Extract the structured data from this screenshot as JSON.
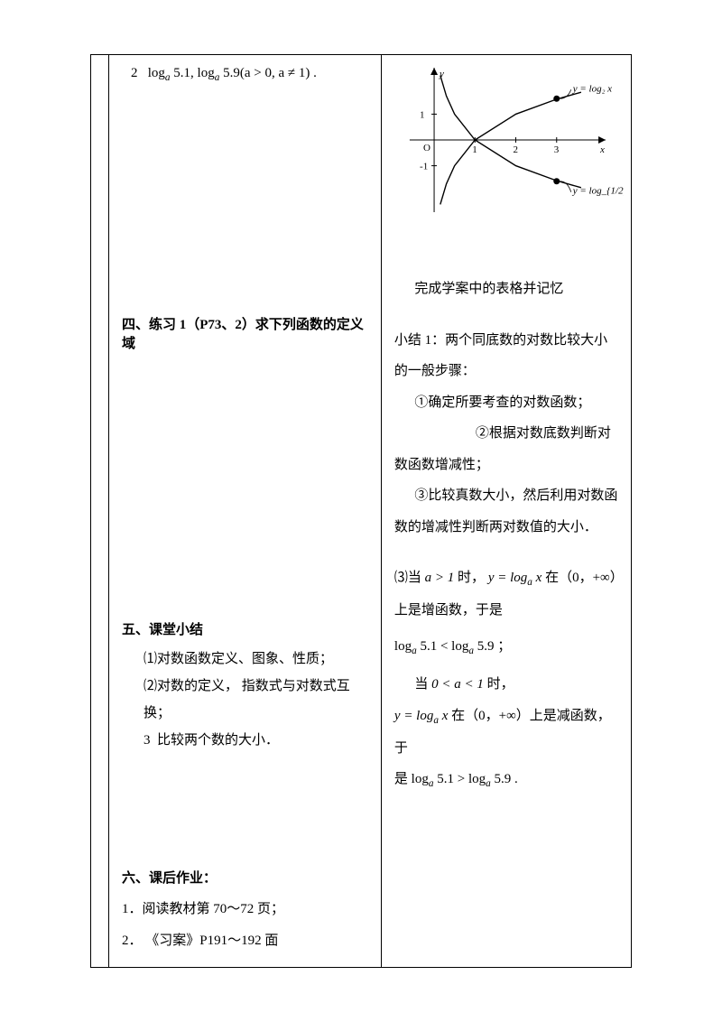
{
  "leftColumn": {
    "item2": {
      "prefix": "2",
      "expr": "log",
      "sub": "a",
      "text1": " 5.1, log",
      "text2": " 5.9(a > 0, a ≠ 1) ."
    },
    "section4": {
      "heading": "四、练习 1（P73、2）求下列函数的定义域"
    },
    "section5": {
      "heading": "五、课堂小结",
      "line1": "⑴对数函数定义、图象、性质；",
      "line2": "⑵对数的定义，  指数式与对数式互换；",
      "line3_prefix": "3",
      "line3": "比较两个数的大小．"
    },
    "section6": {
      "heading": "六、课后作业：",
      "line1": "1．阅读教材第 70～72 页；",
      "line2": "2．  《习案》P191～192 面"
    }
  },
  "rightColumn": {
    "chart": {
      "type": "line-plot",
      "background_color": "#ffffff",
      "axis_color": "#000000",
      "curve_color": "#000000",
      "label_fontsize": 11,
      "y_axis_label": "y",
      "x_axis_label": "x",
      "xticks": [
        1,
        2,
        3
      ],
      "yticks": [
        -1,
        1
      ],
      "curves": [
        {
          "label": "y = log₂ x",
          "dot_x": 3,
          "dot_y": 1.6,
          "points": [
            [
              0.15,
              -2.5
            ],
            [
              0.3,
              -1.7
            ],
            [
              0.5,
              -1.0
            ],
            [
              1,
              0
            ],
            [
              2,
              1
            ],
            [
              3,
              1.58
            ],
            [
              3.6,
              1.85
            ]
          ]
        },
        {
          "label": "y = log_{1/2} x",
          "dot_x": 3,
          "dot_y": -1.6,
          "points": [
            [
              0.15,
              2.5
            ],
            [
              0.3,
              1.7
            ],
            [
              0.5,
              1.0
            ],
            [
              1,
              0
            ],
            [
              2,
              -1
            ],
            [
              3,
              -1.58
            ],
            [
              3.6,
              -1.85
            ]
          ]
        }
      ],
      "origin_label": "O",
      "xlim": [
        -0.6,
        4.2
      ],
      "ylim": [
        -2.8,
        2.8
      ]
    },
    "tableNote": "完成学案中的表格并记忆",
    "summary1": {
      "title": "小结 1：两个同底数的对数比较大小的一般步骤：",
      "step1": "①确定所要考查的对数函数；",
      "step2": "②根据对数底数判断对数函数增减性；",
      "step3": "③比较真数大小，然后利用对数函数的增减性判断两对数值的大小．"
    },
    "case3": {
      "prefix": "⑶当",
      "cond1": "a > 1",
      "mid1": "时，",
      "func": "y = log",
      "funcSub": "a",
      "funcArg": " x",
      "range1": "在（0，+∞）上是增函数，于是",
      "cmp1_l": "log",
      "cmp1_l_sub": "a",
      "cmp1_l_val": " 5.1",
      "cmp1_op": " < ",
      "cmp1_r": "log",
      "cmp1_r_sub": "a",
      "cmp1_r_val": " 5.9",
      "semicolon": " ；",
      "when": "当 ",
      "cond2": "0 < a < 1",
      "mid2": "时，",
      "range2": " 在（0，+∞）上是减函数，于",
      "is": "是 ",
      "cmp2_op": " > ",
      "period": " ."
    }
  }
}
